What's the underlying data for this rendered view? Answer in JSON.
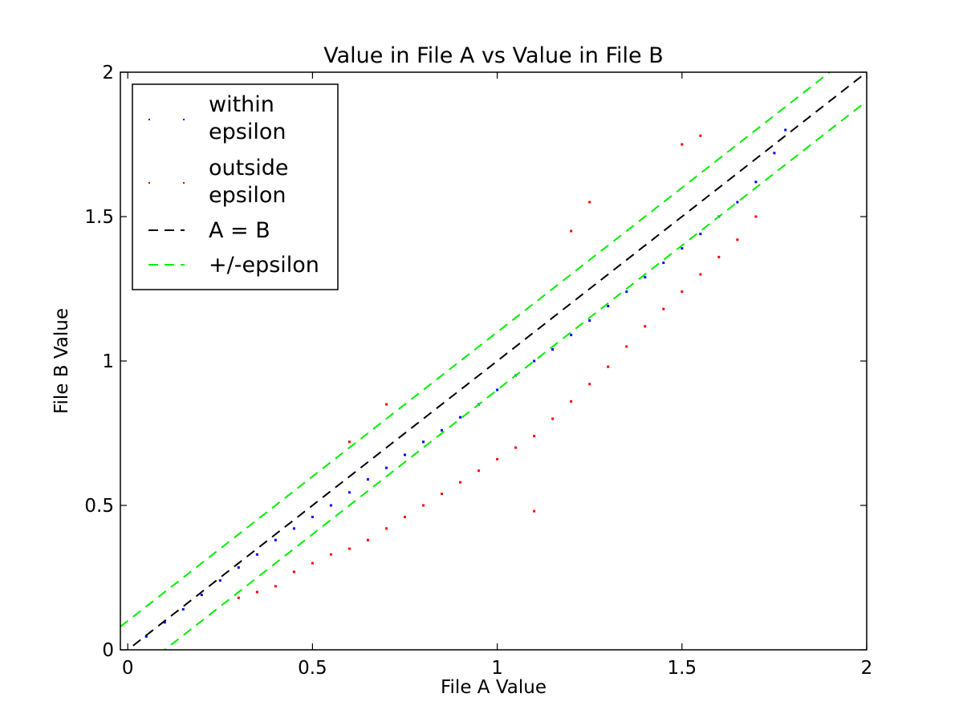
{
  "chart_data": {
    "type": "scatter",
    "title": "Value in File A vs Value in File B",
    "xlabel": "File A Value",
    "ylabel": "File B Value",
    "xlim": [
      -0.02,
      2
    ],
    "ylim": [
      0,
      2
    ],
    "x_ticks": [
      0,
      0.5,
      1,
      1.5,
      2
    ],
    "x_tick_labels": [
      "0",
      "0.5",
      "1",
      "1.5",
      "2"
    ],
    "y_ticks": [
      0,
      0.5,
      1,
      1.5,
      2
    ],
    "y_tick_labels": [
      "0",
      "0.5",
      "1",
      "1.5",
      "2"
    ],
    "grid": false,
    "legend": {
      "position": "top-left",
      "entries": [
        {
          "key": "within",
          "lines": [
            "within",
            "epsilon"
          ]
        },
        {
          "key": "outside",
          "lines": [
            "outside",
            "epsilon"
          ]
        },
        {
          "key": "identity",
          "lines": [
            "A = B"
          ]
        },
        {
          "key": "epsilon",
          "lines": [
            "+/-epsilon"
          ]
        }
      ]
    },
    "epsilon": 0.1,
    "colors": {
      "within": "#0000ff",
      "outside": "#ff0000",
      "identity": "#000000",
      "epsilon": "#00ee00"
    },
    "series": [
      {
        "key": "within",
        "marker": "point",
        "values": [
          [
            0.05,
            0.046
          ],
          [
            0.1,
            0.095
          ],
          [
            0.15,
            0.14
          ],
          [
            0.2,
            0.19
          ],
          [
            0.25,
            0.24
          ],
          [
            0.3,
            0.285
          ],
          [
            0.35,
            0.33
          ],
          [
            0.4,
            0.38
          ],
          [
            0.45,
            0.42
          ],
          [
            0.5,
            0.46
          ],
          [
            0.55,
            0.5
          ],
          [
            0.6,
            0.545
          ],
          [
            0.65,
            0.59
          ],
          [
            0.7,
            0.63
          ],
          [
            0.75,
            0.675
          ],
          [
            0.8,
            0.72
          ],
          [
            0.85,
            0.76
          ],
          [
            0.9,
            0.805
          ],
          [
            0.95,
            0.85
          ],
          [
            1.0,
            0.9
          ],
          [
            1.05,
            0.95
          ],
          [
            1.1,
            1.0
          ],
          [
            1.15,
            1.04
          ],
          [
            1.2,
            1.09
          ],
          [
            1.25,
            1.14
          ],
          [
            1.3,
            1.19
          ],
          [
            1.35,
            1.24
          ],
          [
            1.4,
            1.29
          ],
          [
            1.45,
            1.34
          ],
          [
            1.5,
            1.39
          ],
          [
            1.55,
            1.44
          ],
          [
            1.6,
            1.5
          ],
          [
            1.65,
            1.55
          ],
          [
            1.7,
            1.62
          ],
          [
            1.75,
            1.72
          ],
          [
            1.78,
            1.8
          ]
        ]
      },
      {
        "key": "outside",
        "marker": "point",
        "values": [
          [
            0.3,
            0.18
          ],
          [
            0.35,
            0.2
          ],
          [
            0.4,
            0.22
          ],
          [
            0.45,
            0.27
          ],
          [
            0.5,
            0.3
          ],
          [
            0.55,
            0.33
          ],
          [
            0.6,
            0.35
          ],
          [
            0.65,
            0.38
          ],
          [
            0.7,
            0.42
          ],
          [
            0.75,
            0.46
          ],
          [
            0.8,
            0.5
          ],
          [
            0.85,
            0.54
          ],
          [
            0.9,
            0.58
          ],
          [
            0.95,
            0.62
          ],
          [
            1.0,
            0.66
          ],
          [
            1.05,
            0.7
          ],
          [
            1.1,
            0.74
          ],
          [
            1.15,
            0.8
          ],
          [
            1.2,
            0.86
          ],
          [
            1.25,
            0.92
          ],
          [
            1.3,
            0.98
          ],
          [
            1.35,
            1.05
          ],
          [
            1.4,
            1.12
          ],
          [
            1.45,
            1.18
          ],
          [
            1.5,
            1.24
          ],
          [
            1.55,
            1.3
          ],
          [
            1.6,
            1.36
          ],
          [
            1.65,
            1.42
          ],
          [
            1.7,
            1.5
          ],
          [
            1.2,
            1.45
          ],
          [
            1.25,
            1.55
          ],
          [
            1.5,
            1.75
          ],
          [
            1.55,
            1.78
          ],
          [
            0.6,
            0.72
          ],
          [
            0.7,
            0.85
          ],
          [
            1.1,
            0.48
          ]
        ]
      }
    ]
  }
}
